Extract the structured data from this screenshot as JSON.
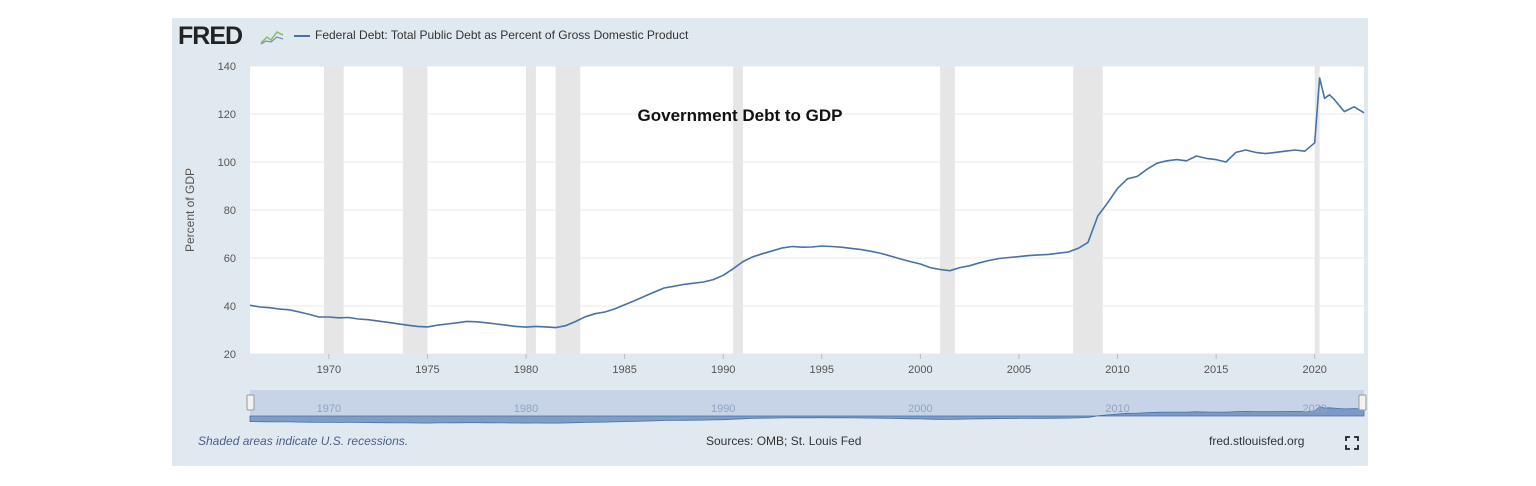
{
  "header": {
    "logo_text": "FRED",
    "legend_label": "Federal Debt: Total Public Debt as Percent of Gross Domestic Product"
  },
  "footer": {
    "recession_note": "Shaded areas indicate U.S. recessions.",
    "sources": "Sources: OMB; St. Louis Fed",
    "site": "fred.stlouisfed.org"
  },
  "colors": {
    "line": "#4572a7",
    "recession": "#e6e6e6",
    "panel": "#e1e9f0",
    "navigator_fill": "#6f8fbe"
  },
  "chart_data": {
    "type": "line",
    "title": "Government Debt to GDP",
    "xlabel": "",
    "ylabel": "Percent of GDP",
    "xlim": [
      1966.0,
      2022.5
    ],
    "ylim": [
      20,
      140
    ],
    "y_ticks": [
      "20",
      "40",
      "60",
      "80",
      "100",
      "120",
      "140"
    ],
    "x_ticks": [
      "1970",
      "1975",
      "1980",
      "1985",
      "1990",
      "1995",
      "2000",
      "2005",
      "2010",
      "2015",
      "2020"
    ],
    "navigator_ticks": [
      "1970",
      "1980",
      "1990",
      "2000",
      "2010",
      "2020"
    ],
    "grid": true,
    "recessions": [
      [
        1969.75,
        1970.75
      ],
      [
        1973.75,
        1975.0
      ],
      [
        1980.0,
        1980.5
      ],
      [
        1981.5,
        1982.75
      ],
      [
        1990.5,
        1991.0
      ],
      [
        2001.0,
        2001.75
      ],
      [
        2007.75,
        2009.25
      ],
      [
        2020.0,
        2020.25
      ]
    ],
    "series": [
      {
        "name": "Federal Debt: Total Public Debt as Percent of Gross Domestic Product",
        "x": [
          1966.0,
          1966.5,
          1967.0,
          1967.5,
          1968.0,
          1968.5,
          1969.0,
          1969.5,
          1970.0,
          1970.5,
          1971.0,
          1971.5,
          1972.0,
          1972.5,
          1973.0,
          1973.5,
          1974.0,
          1974.5,
          1975.0,
          1975.5,
          1976.0,
          1976.5,
          1977.0,
          1977.5,
          1978.0,
          1978.5,
          1979.0,
          1979.5,
          1980.0,
          1980.5,
          1981.0,
          1981.5,
          1982.0,
          1982.5,
          1983.0,
          1983.5,
          1984.0,
          1984.5,
          1985.0,
          1985.5,
          1986.0,
          1986.5,
          1987.0,
          1987.5,
          1988.0,
          1988.5,
          1989.0,
          1989.5,
          1990.0,
          1990.5,
          1991.0,
          1991.5,
          1992.0,
          1992.5,
          1993.0,
          1993.5,
          1994.0,
          1994.5,
          1995.0,
          1995.5,
          1996.0,
          1996.5,
          1997.0,
          1997.5,
          1998.0,
          1998.5,
          1999.0,
          1999.5,
          2000.0,
          2000.5,
          2001.0,
          2001.5,
          2002.0,
          2002.5,
          2003.0,
          2003.5,
          2004.0,
          2004.5,
          2005.0,
          2005.5,
          2006.0,
          2006.5,
          2007.0,
          2007.5,
          2008.0,
          2008.5,
          2009.0,
          2009.5,
          2010.0,
          2010.5,
          2011.0,
          2011.5,
          2012.0,
          2012.5,
          2013.0,
          2013.5,
          2014.0,
          2014.5,
          2015.0,
          2015.5,
          2016.0,
          2016.5,
          2017.0,
          2017.5,
          2018.0,
          2018.5,
          2019.0,
          2019.5,
          2020.0,
          2020.25,
          2020.5,
          2020.75,
          2021.0,
          2021.5,
          2022.0,
          2022.5
        ],
        "y": [
          40.3,
          39.6,
          39.3,
          38.7,
          38.4,
          37.5,
          36.5,
          35.4,
          35.4,
          35.1,
          35.2,
          34.6,
          34.3,
          33.7,
          33.2,
          32.6,
          32.0,
          31.5,
          31.3,
          32.0,
          32.5,
          33.0,
          33.6,
          33.4,
          33.0,
          32.5,
          32.0,
          31.5,
          31.2,
          31.5,
          31.3,
          31.0,
          31.8,
          33.5,
          35.5,
          36.8,
          37.5,
          38.8,
          40.5,
          42.2,
          44.0,
          45.8,
          47.5,
          48.2,
          49.0,
          49.5,
          50.0,
          51.0,
          52.8,
          55.5,
          58.5,
          60.5,
          61.8,
          63.0,
          64.2,
          64.8,
          64.5,
          64.6,
          65.0,
          64.8,
          64.5,
          64.0,
          63.5,
          62.8,
          61.9,
          60.8,
          59.6,
          58.5,
          57.5,
          56.0,
          55.2,
          54.7,
          56.0,
          56.8,
          58.0,
          59.0,
          59.8,
          60.2,
          60.6,
          61.0,
          61.3,
          61.5,
          62.0,
          62.5,
          64.0,
          66.5,
          77.5,
          83.0,
          89.0,
          93.0,
          94.0,
          97.0,
          99.5,
          100.5,
          101.0,
          100.5,
          102.5,
          101.5,
          101.0,
          100.0,
          104.0,
          105.0,
          104.0,
          103.5,
          104.0,
          104.5,
          105.0,
          104.5,
          108.0,
          135.0,
          126.5,
          128.0,
          126.0,
          121.0,
          123.0,
          120.5
        ]
      }
    ]
  }
}
